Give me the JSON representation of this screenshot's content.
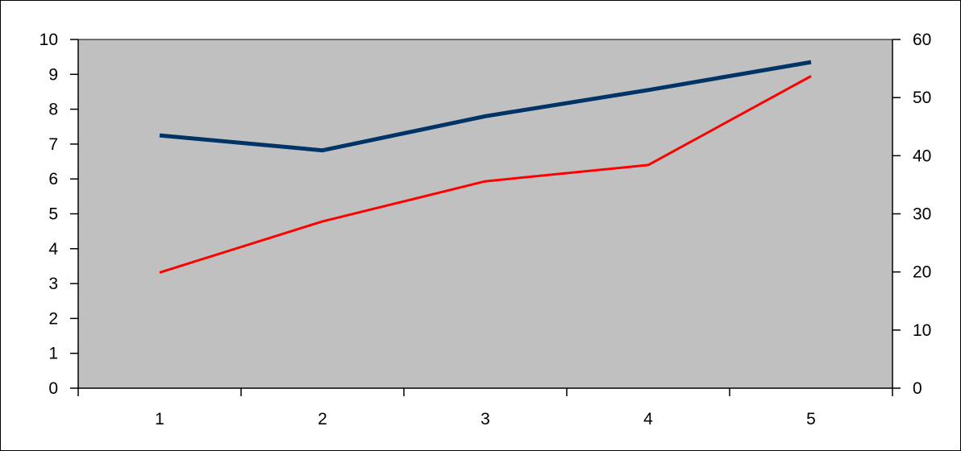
{
  "chart_data": {
    "type": "line",
    "x": [
      1,
      2,
      3,
      4,
      5
    ],
    "x_tick_labels": [
      "1",
      "2",
      "3",
      "4",
      "5"
    ],
    "y_left": {
      "lim": [
        0,
        10
      ],
      "ticks": [
        0,
        1,
        2,
        3,
        4,
        5,
        6,
        7,
        8,
        9,
        10
      ]
    },
    "y_right": {
      "lim": [
        0,
        60
      ],
      "ticks": [
        0,
        10,
        20,
        30,
        40,
        50,
        60
      ]
    },
    "series": [
      {
        "axis": "left",
        "color": "#003366",
        "values": [
          7.25,
          6.82,
          7.8,
          8.55,
          9.35
        ]
      },
      {
        "axis": "right",
        "color": "#ff0000",
        "values": [
          19.9,
          28.7,
          35.6,
          38.4,
          53.7
        ]
      }
    ],
    "plot_background": "#c0c0c0",
    "grid": false,
    "legend": "none"
  }
}
